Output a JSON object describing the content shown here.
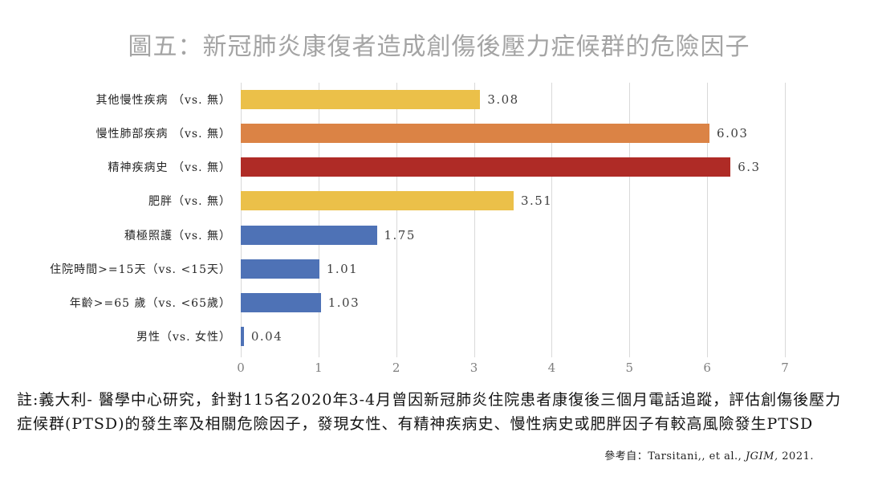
{
  "title": "圖五：新冠肺炎康復者造成創傷後壓力症候群的危險因子",
  "chart_data": {
    "type": "bar",
    "orientation": "horizontal",
    "title": "圖五：新冠肺炎康復者造成創傷後壓力症候群的危險因子",
    "categories": [
      "其他慢性疾病 （vs. 無）",
      "慢性肺部疾病 （vs. 無）",
      "精神疾病史 （vs. 無）",
      "肥胖（vs. 無）",
      "積極照護（vs. 無）",
      "住院時間>=15天（vs. <15天）",
      "年齡>=65 歲（vs. <65歲）",
      "男性（vs. 女性）"
    ],
    "values": [
      3.08,
      6.03,
      6.3,
      3.51,
      1.75,
      1.01,
      1.03,
      0.04
    ],
    "value_labels": [
      "3.08",
      "6.03",
      "6.3",
      "3.51",
      "1.75",
      "1.01",
      "1.03",
      "0.04"
    ],
    "bar_colors": [
      "#EBC049",
      "#DB8345",
      "#AF2B26",
      "#EBC049",
      "#4E72B6",
      "#4E72B6",
      "#4E72B6",
      "#4E72B6"
    ],
    "xlabel": "",
    "ylabel": "",
    "xlim": [
      0,
      7
    ],
    "x_ticks": [
      0,
      1,
      2,
      3,
      4,
      5,
      6,
      7
    ],
    "grid": true,
    "legend": false
  },
  "note": {
    "line1": "註:義大利- 醫學中心研究，針對115名2020年3-4月曾因新冠肺炎住院患者康復後三個月電話追蹤，評估創傷後壓力",
    "line2": "症候群(PTSD)的發生率及相關危險因子，發現女性、有精神疾病史、慢性病史或肥胖因子有較高風險發生PTSD"
  },
  "reference": {
    "prefix": "參考自：Tarsitani,, et al., ",
    "journal_italic": "JGIM,",
    "suffix": " 2021."
  },
  "colors": {
    "title_text": "#A4A4A4",
    "gridline": "#D9D9D9",
    "axis_text": "#7F7F7F",
    "bar_yellow": "#EBC049",
    "bar_orange": "#DB8345",
    "bar_red": "#AF2B26",
    "bar_blue": "#4E72B6"
  }
}
